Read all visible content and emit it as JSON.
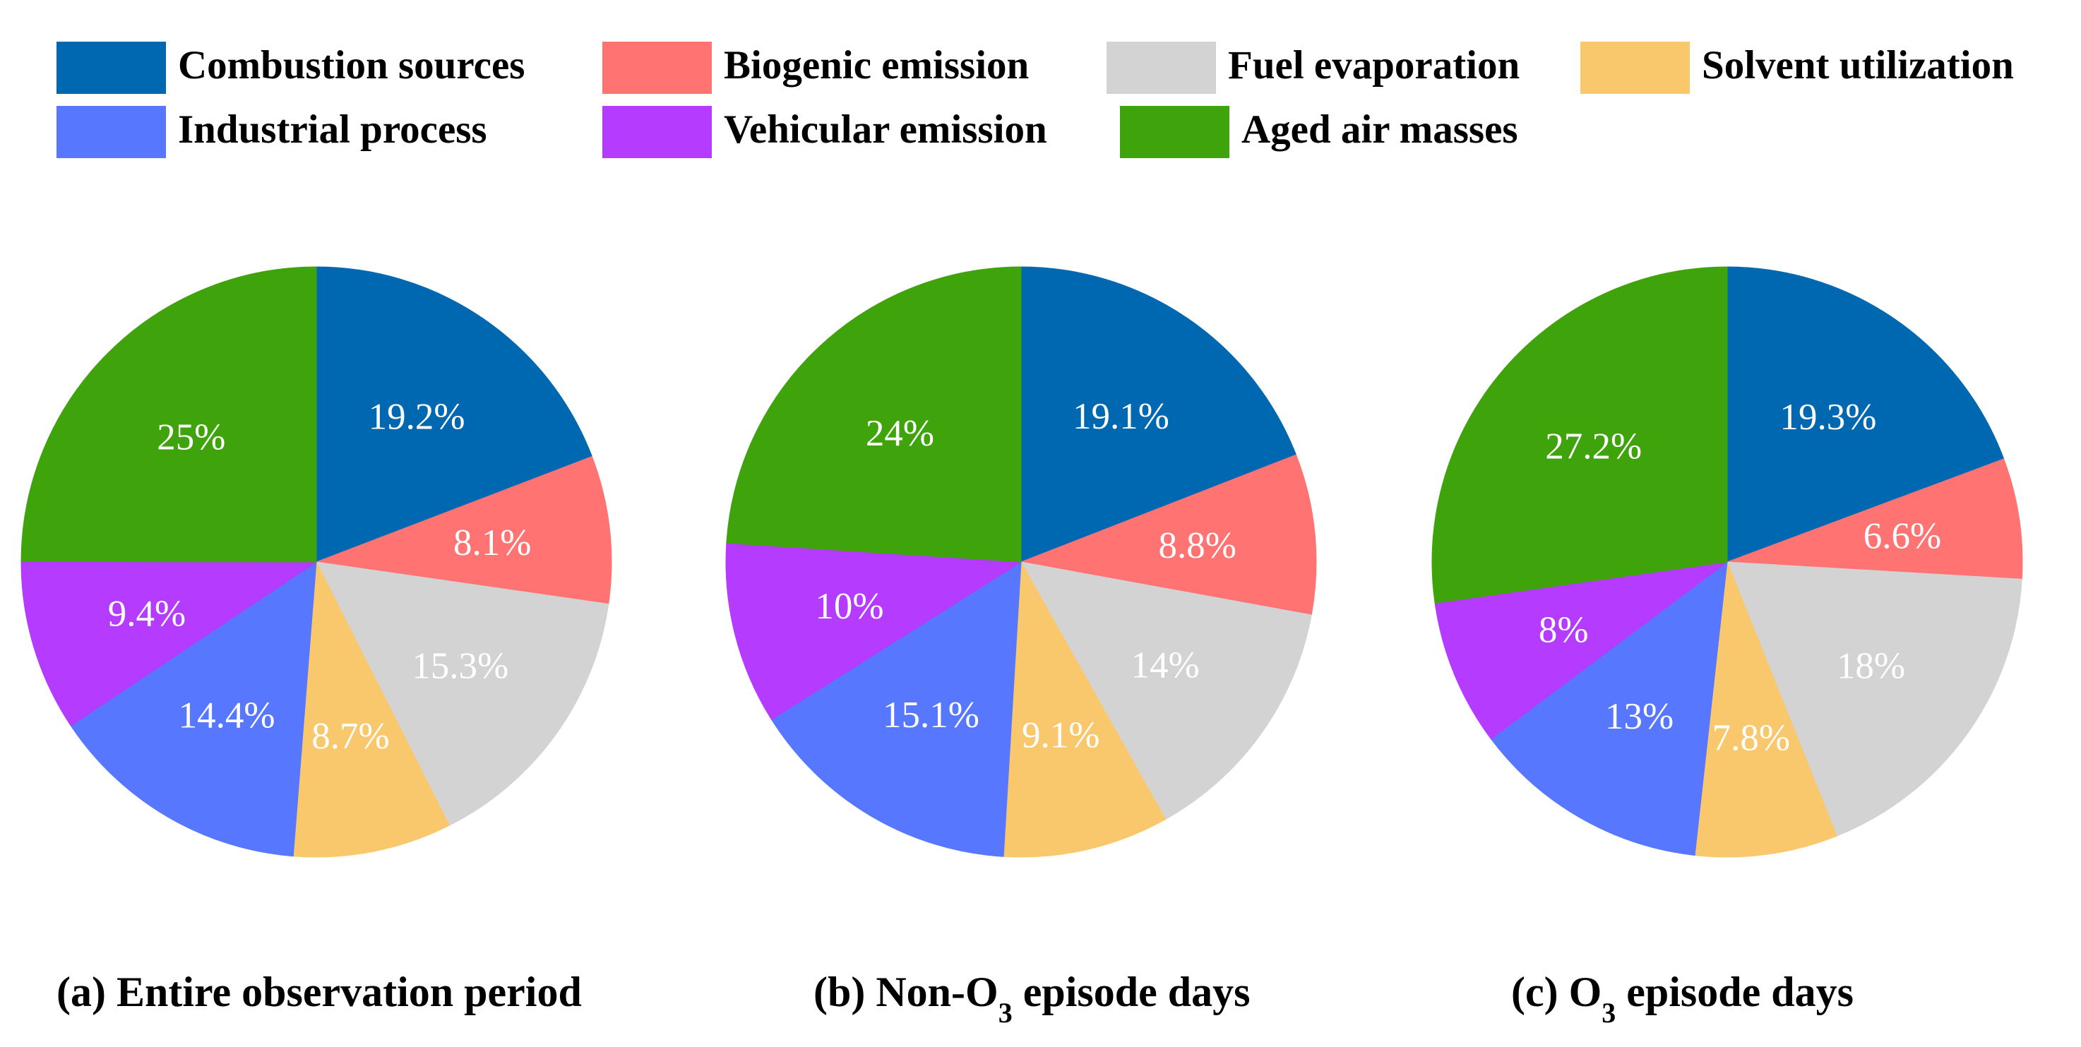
{
  "legend": [
    {
      "label": "Combustion sources",
      "color": "#0068B0"
    },
    {
      "label": "Biogenic emission",
      "color": "#FF7373"
    },
    {
      "label": "Fuel evaporation",
      "color": "#D3D3D3"
    },
    {
      "label": "Solvent utilization",
      "color": "#FAC86C"
    },
    {
      "label": "Industrial process",
      "color": "#5777FF"
    },
    {
      "label": "Vehicular emission",
      "color": "#B43BFF"
    },
    {
      "label": "Aged air masses",
      "color": "#3FA30B"
    }
  ],
  "chart_data": [
    {
      "type": "pie",
      "title": {
        "prefix": "(a) Entire observation period",
        "sub": "",
        "suffix": ""
      },
      "categories": [
        "Combustion sources",
        "Biogenic emission",
        "Fuel evaporation",
        "Solvent utilization",
        "Industrial process",
        "Vehicular emission",
        "Aged air masses"
      ],
      "values": [
        19.2,
        8.1,
        15.3,
        8.7,
        14.4,
        9.4,
        25
      ],
      "labels": [
        "19.2%",
        "8.1%",
        "15.3%",
        "8.7%",
        "14.4%",
        "9.4%",
        "25%"
      ]
    },
    {
      "type": "pie",
      "title": {
        "prefix": "(b) Non-O",
        "sub": "3",
        "suffix": " episode days"
      },
      "categories": [
        "Combustion sources",
        "Biogenic emission",
        "Fuel evaporation",
        "Solvent utilization",
        "Industrial process",
        "Vehicular emission",
        "Aged air masses"
      ],
      "values": [
        19.1,
        8.8,
        14,
        9.1,
        15.1,
        10,
        24
      ],
      "labels": [
        "19.1%",
        "8.8%",
        "14%",
        "9.1%",
        "15.1%",
        "10%",
        "24%"
      ]
    },
    {
      "type": "pie",
      "title": {
        "prefix": "(c) O",
        "sub": "3",
        "suffix": " episode days"
      },
      "categories": [
        "Combustion sources",
        "Biogenic emission",
        "Fuel evaporation",
        "Solvent utilization",
        "Industrial process",
        "Vehicular emission",
        "Aged air masses"
      ],
      "values": [
        19.3,
        6.6,
        18,
        7.8,
        13,
        8,
        27.2
      ],
      "labels": [
        "19.3%",
        "6.6%",
        "18%",
        "7.8%",
        "13%",
        "8%",
        "27.2%"
      ]
    }
  ]
}
